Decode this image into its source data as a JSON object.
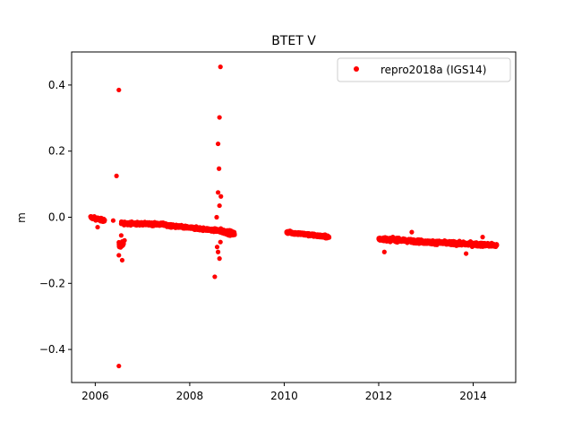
{
  "chart_data": {
    "type": "scatter",
    "title": "BTET V",
    "xlabel": "",
    "ylabel": "m",
    "xlim": [
      2005.5,
      2014.9
    ],
    "ylim": [
      -0.5,
      0.5
    ],
    "xticks": [
      2006,
      2008,
      2010,
      2012,
      2014
    ],
    "xtick_labels": [
      "2006",
      "2008",
      "2010",
      "2012",
      "2014"
    ],
    "yticks": [
      -0.4,
      -0.2,
      0.0,
      0.2,
      0.4
    ],
    "ytick_labels": [
      "−0.4",
      "−0.2",
      "0.0",
      "0.2",
      "0.4"
    ],
    "grid": false,
    "legend_position": "upper right",
    "series": [
      {
        "name": "repro2018a (IGS14)",
        "color": "#ff0000",
        "marker": "circle",
        "segments": [
          {
            "x_start": 2005.9,
            "x_end": 2006.2,
            "y_start": 0.0,
            "y_end": -0.01,
            "spread": 0.008
          },
          {
            "x_start": 2006.5,
            "x_end": 2006.6,
            "y_start": -0.085,
            "y_end": -0.08,
            "spread": 0.015
          },
          {
            "x_start": 2006.55,
            "x_end": 2007.5,
            "y_start": -0.018,
            "y_end": -0.022,
            "spread": 0.008
          },
          {
            "x_start": 2007.5,
            "x_end": 2008.6,
            "y_start": -0.025,
            "y_end": -0.04,
            "spread": 0.008
          },
          {
            "x_start": 2008.6,
            "x_end": 2008.95,
            "y_start": -0.04,
            "y_end": -0.05,
            "spread": 0.012
          },
          {
            "x_start": 2010.05,
            "x_end": 2010.95,
            "y_start": -0.045,
            "y_end": -0.06,
            "spread": 0.008
          },
          {
            "x_start": 2012.0,
            "x_end": 2013.0,
            "y_start": -0.065,
            "y_end": -0.075,
            "spread": 0.01
          },
          {
            "x_start": 2013.0,
            "x_end": 2014.5,
            "y_start": -0.075,
            "y_end": -0.085,
            "spread": 0.01
          }
        ],
        "outliers": [
          {
            "x": 2006.5,
            "y": 0.385
          },
          {
            "x": 2006.45,
            "y": 0.125
          },
          {
            "x": 2006.5,
            "y": -0.45
          },
          {
            "x": 2006.5,
            "y": -0.115
          },
          {
            "x": 2006.57,
            "y": -0.13
          },
          {
            "x": 2006.05,
            "y": -0.03
          },
          {
            "x": 2006.38,
            "y": -0.01
          },
          {
            "x": 2006.55,
            "y": -0.055
          },
          {
            "x": 2006.62,
            "y": -0.07
          },
          {
            "x": 2008.65,
            "y": 0.455
          },
          {
            "x": 2008.63,
            "y": 0.302
          },
          {
            "x": 2008.6,
            "y": 0.222
          },
          {
            "x": 2008.62,
            "y": 0.147
          },
          {
            "x": 2008.6,
            "y": 0.075
          },
          {
            "x": 2008.66,
            "y": 0.063
          },
          {
            "x": 2008.63,
            "y": 0.035
          },
          {
            "x": 2008.57,
            "y": 0.0
          },
          {
            "x": 2008.53,
            "y": -0.18
          },
          {
            "x": 2008.63,
            "y": -0.125
          },
          {
            "x": 2008.6,
            "y": -0.105
          },
          {
            "x": 2008.58,
            "y": -0.09
          },
          {
            "x": 2008.65,
            "y": -0.075
          },
          {
            "x": 2012.12,
            "y": -0.105
          },
          {
            "x": 2012.7,
            "y": -0.045
          },
          {
            "x": 2013.85,
            "y": -0.11
          },
          {
            "x": 2014.2,
            "y": -0.06
          }
        ]
      }
    ]
  }
}
